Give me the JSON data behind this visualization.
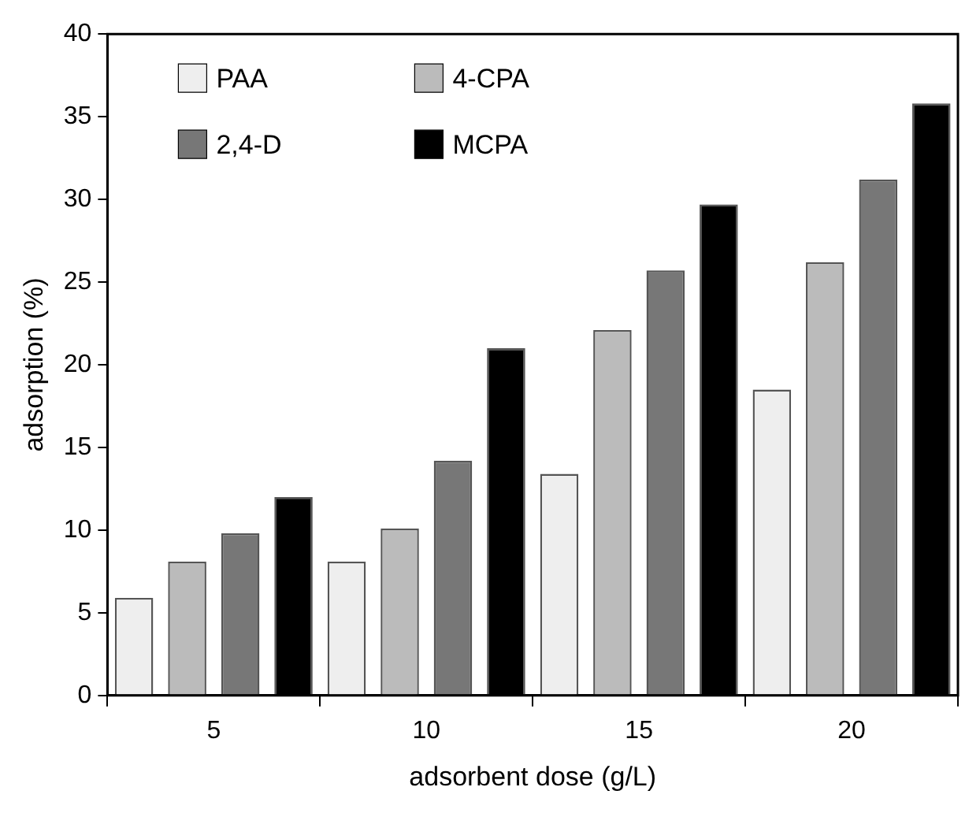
{
  "chart_data": {
    "type": "bar",
    "xlabel": "adsorbent dose (g/L)",
    "ylabel": "adsorption (%)",
    "categories": [
      "5",
      "10",
      "15",
      "20"
    ],
    "series": [
      {
        "name": "PAA",
        "color": "#eeeeee",
        "values": [
          5.9,
          8.1,
          13.4,
          18.5
        ]
      },
      {
        "name": "4-CPA",
        "color": "#bbbbbb",
        "values": [
          8.1,
          10.1,
          22.1,
          26.2
        ]
      },
      {
        "name": "2,4-D",
        "color": "#777777",
        "values": [
          9.8,
          14.2,
          25.7,
          31.2
        ]
      },
      {
        "name": "MCPA",
        "color": "#000000",
        "values": [
          12.0,
          21.0,
          29.7,
          35.8
        ]
      }
    ],
    "ylim": [
      0,
      40
    ],
    "yticks": [
      0,
      5,
      10,
      15,
      20,
      25,
      30,
      35,
      40
    ],
    "grid": false,
    "legend": "top left"
  }
}
